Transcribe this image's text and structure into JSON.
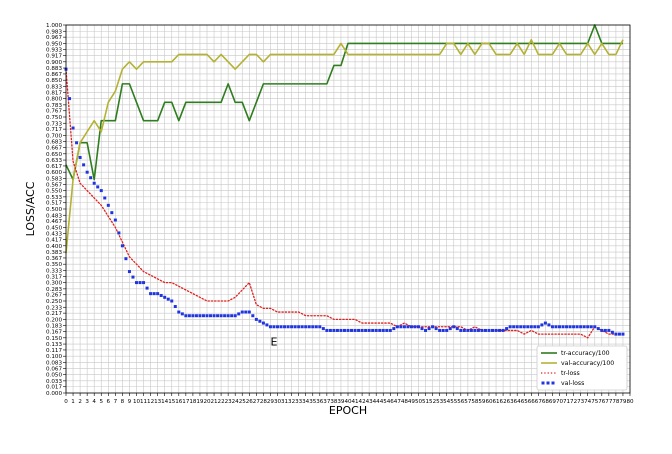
{
  "chart_data": {
    "type": "line",
    "xlabel": "EPOCH",
    "ylabel": "LOSS/ACC",
    "xlim": [
      0,
      80
    ],
    "ylim": [
      0,
      1.0
    ],
    "x_ticks": [
      0,
      1,
      2,
      3,
      4,
      5,
      6,
      7,
      8,
      9,
      10,
      11,
      12,
      13,
      14,
      15,
      16,
      17,
      18,
      19,
      20,
      21,
      22,
      23,
      24,
      25,
      26,
      27,
      28,
      29,
      30,
      31,
      32,
      33,
      34,
      35,
      36,
      37,
      38,
      39,
      40,
      41,
      42,
      43,
      44,
      45,
      46,
      47,
      48,
      49,
      50,
      51,
      52,
      53,
      54,
      55,
      56,
      57,
      58,
      59,
      60,
      61,
      62,
      63,
      64,
      65,
      66,
      67,
      68,
      69,
      70,
      71,
      72,
      73,
      74,
      75,
      76,
      77,
      78,
      79,
      80
    ],
    "y_ticks": [
      "0.000",
      "0.017",
      "0.033",
      "0.050",
      "0.067",
      "0.083",
      "0.100",
      "0.117",
      "0.133",
      "0.150",
      "0.167",
      "0.183",
      "0.200",
      "0.217",
      "0.233",
      "0.250",
      "0.267",
      "0.283",
      "0.300",
      "0.317",
      "0.333",
      "0.350",
      "0.367",
      "0.383",
      "0.400",
      "0.417",
      "0.433",
      "0.450",
      "0.467",
      "0.483",
      "0.500",
      "0.517",
      "0.533",
      "0.550",
      "0.567",
      "0.583",
      "0.600",
      "0.617",
      "0.633",
      "0.650",
      "0.667",
      "0.683",
      "0.700",
      "0.717",
      "0.733",
      "0.750",
      "0.767",
      "0.783",
      "0.800",
      "0.817",
      "0.833",
      "0.850",
      "0.867",
      "0.883",
      "0.900",
      "0.917",
      "0.933",
      "0.950",
      "0.967",
      "0.983",
      "1.000"
    ],
    "grid": true,
    "legend_position": "lower-right",
    "annotation": "E",
    "annotation_at": [
      29,
      0.14
    ],
    "x": [
      0,
      1,
      2,
      3,
      4,
      5,
      6,
      7,
      8,
      9,
      10,
      11,
      12,
      13,
      14,
      15,
      16,
      17,
      18,
      19,
      20,
      21,
      22,
      23,
      24,
      25,
      26,
      27,
      28,
      29,
      30,
      31,
      32,
      33,
      34,
      35,
      36,
      37,
      38,
      39,
      40,
      41,
      42,
      43,
      44,
      45,
      46,
      47,
      48,
      49,
      50,
      51,
      52,
      53,
      54,
      55,
      56,
      57,
      58,
      59,
      60,
      61,
      62,
      63,
      64,
      65,
      66,
      67,
      68,
      69,
      70,
      71,
      72,
      73,
      74,
      75,
      76,
      77,
      78,
      79
    ],
    "series": [
      {
        "name": "tr-accuracy/100",
        "color": "#2e7d1e",
        "style": "solid",
        "values": [
          0.62,
          0.58,
          0.68,
          0.68,
          0.58,
          0.74,
          0.74,
          0.74,
          0.84,
          0.84,
          0.79,
          0.74,
          0.74,
          0.74,
          0.79,
          0.79,
          0.74,
          0.79,
          0.79,
          0.79,
          0.79,
          0.79,
          0.79,
          0.84,
          0.79,
          0.79,
          0.74,
          0.79,
          0.84,
          0.84,
          0.84,
          0.84,
          0.84,
          0.84,
          0.84,
          0.84,
          0.84,
          0.84,
          0.89,
          0.89,
          0.95,
          0.95,
          0.95,
          0.95,
          0.95,
          0.95,
          0.95,
          0.95,
          0.95,
          0.95,
          0.95,
          0.95,
          0.95,
          0.95,
          0.95,
          0.95,
          0.95,
          0.95,
          0.95,
          0.95,
          0.95,
          0.95,
          0.95,
          0.95,
          0.95,
          0.95,
          0.95,
          0.95,
          0.95,
          0.95,
          0.95,
          0.95,
          0.95,
          0.95,
          0.95,
          1.0,
          0.95,
          0.95,
          0.95,
          0.95
        ]
      },
      {
        "name": "val-accuracy/100",
        "color": "#b5b233",
        "style": "solid",
        "values": [
          0.38,
          0.58,
          0.68,
          0.71,
          0.74,
          0.71,
          0.79,
          0.82,
          0.88,
          0.9,
          0.88,
          0.9,
          0.9,
          0.9,
          0.9,
          0.9,
          0.92,
          0.92,
          0.92,
          0.92,
          0.92,
          0.9,
          0.92,
          0.9,
          0.88,
          0.9,
          0.92,
          0.92,
          0.9,
          0.92,
          0.92,
          0.92,
          0.92,
          0.92,
          0.92,
          0.92,
          0.92,
          0.92,
          0.92,
          0.95,
          0.92,
          0.92,
          0.92,
          0.92,
          0.92,
          0.92,
          0.92,
          0.92,
          0.92,
          0.92,
          0.92,
          0.92,
          0.92,
          0.92,
          0.95,
          0.95,
          0.92,
          0.95,
          0.92,
          0.95,
          0.95,
          0.92,
          0.92,
          0.92,
          0.95,
          0.92,
          0.96,
          0.92,
          0.92,
          0.92,
          0.95,
          0.92,
          0.92,
          0.92,
          0.95,
          0.92,
          0.95,
          0.92,
          0.92,
          0.96
        ]
      },
      {
        "name": "tr-loss",
        "color": "#e02020",
        "style": "dotted",
        "values": [
          0.88,
          0.63,
          0.57,
          0.55,
          0.53,
          0.51,
          0.48,
          0.45,
          0.41,
          0.37,
          0.35,
          0.33,
          0.32,
          0.31,
          0.3,
          0.3,
          0.29,
          0.28,
          0.27,
          0.26,
          0.25,
          0.25,
          0.25,
          0.25,
          0.26,
          0.28,
          0.3,
          0.24,
          0.23,
          0.23,
          0.22,
          0.22,
          0.22,
          0.22,
          0.21,
          0.21,
          0.21,
          0.21,
          0.2,
          0.2,
          0.2,
          0.2,
          0.19,
          0.19,
          0.19,
          0.19,
          0.19,
          0.18,
          0.19,
          0.18,
          0.18,
          0.18,
          0.18,
          0.18,
          0.18,
          0.18,
          0.18,
          0.17,
          0.18,
          0.17,
          0.17,
          0.17,
          0.17,
          0.17,
          0.17,
          0.16,
          0.17,
          0.16,
          0.16,
          0.16,
          0.16,
          0.16,
          0.16,
          0.16,
          0.15,
          0.18,
          0.17,
          0.16,
          0.16,
          0.16
        ]
      },
      {
        "name": "val-loss",
        "color": "#1f35e0",
        "style": "dotted",
        "values": [
          0.88,
          0.72,
          0.64,
          0.6,
          0.57,
          0.55,
          0.51,
          0.47,
          0.4,
          0.33,
          0.3,
          0.3,
          0.27,
          0.27,
          0.26,
          0.25,
          0.22,
          0.21,
          0.21,
          0.21,
          0.21,
          0.21,
          0.21,
          0.21,
          0.21,
          0.22,
          0.22,
          0.2,
          0.19,
          0.18,
          0.18,
          0.18,
          0.18,
          0.18,
          0.18,
          0.18,
          0.18,
          0.17,
          0.17,
          0.17,
          0.17,
          0.17,
          0.17,
          0.17,
          0.17,
          0.17,
          0.17,
          0.18,
          0.18,
          0.18,
          0.18,
          0.17,
          0.18,
          0.17,
          0.17,
          0.18,
          0.17,
          0.17,
          0.17,
          0.17,
          0.17,
          0.17,
          0.17,
          0.18,
          0.18,
          0.18,
          0.18,
          0.18,
          0.19,
          0.18,
          0.18,
          0.18,
          0.18,
          0.18,
          0.18,
          0.18,
          0.17,
          0.17,
          0.16,
          0.16
        ]
      }
    ]
  }
}
